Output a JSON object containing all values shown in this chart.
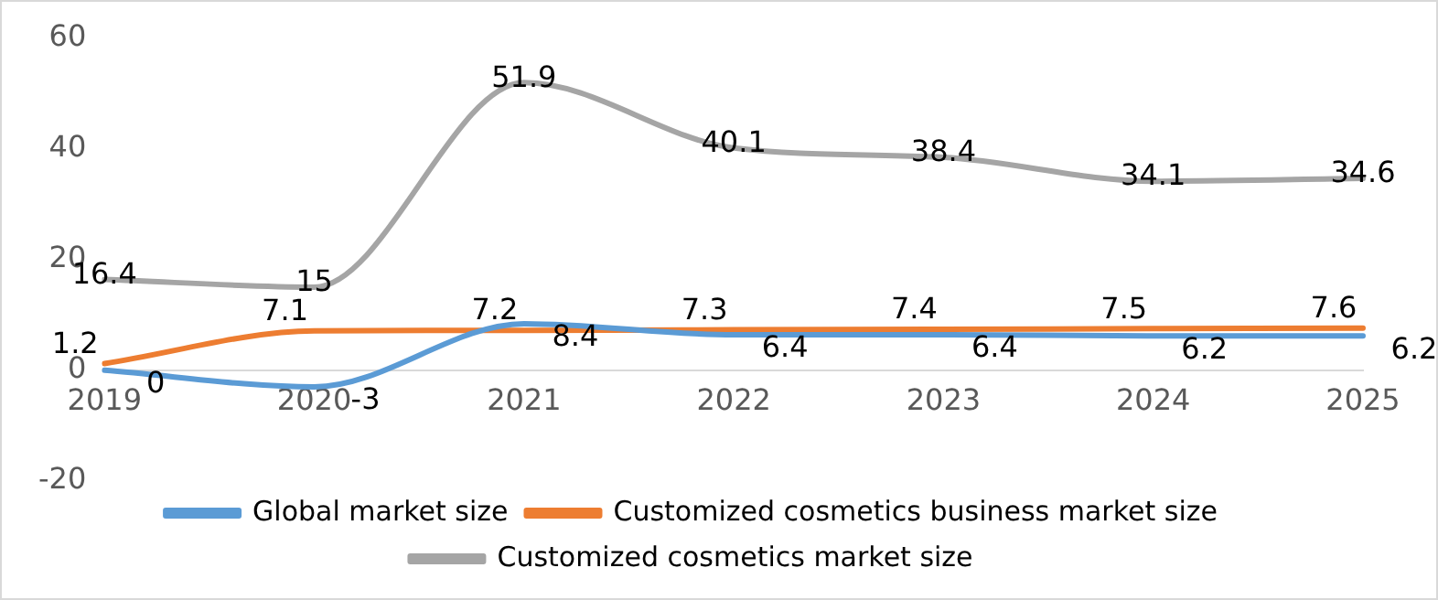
{
  "chart_data": {
    "type": "line",
    "categories": [
      "2019",
      "2020",
      "2021",
      "2022",
      "2023",
      "2024",
      "2025"
    ],
    "series": [
      {
        "name": "Global market size",
        "color": "#5b9bd5",
        "values": [
          0,
          -3,
          8.4,
          6.4,
          6.4,
          6.2,
          6.2
        ]
      },
      {
        "name": "Customized cosmetics business market size",
        "color": "#ed7d31",
        "values": [
          1.2,
          7.1,
          7.2,
          7.3,
          7.4,
          7.5,
          7.6
        ]
      },
      {
        "name": "Customized cosmetics market size",
        "color": "#a5a5a5",
        "values": [
          16.4,
          15,
          51.9,
          40.1,
          38.4,
          34.1,
          34.6
        ]
      }
    ],
    "ylim": [
      -20,
      60
    ],
    "yticks": [
      -20,
      0,
      20,
      40,
      60
    ],
    "grid": false,
    "legend": "bottom",
    "marker": "none",
    "line_style": "solid",
    "data_labels": true
  }
}
